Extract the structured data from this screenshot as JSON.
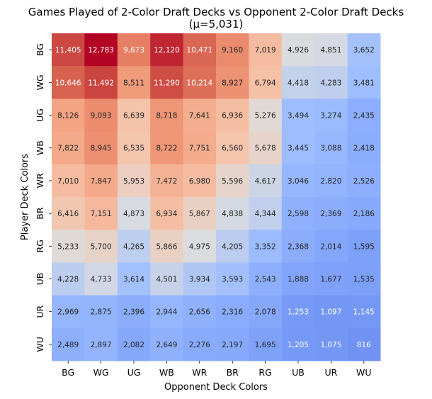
{
  "chart_data": {
    "type": "heatmap",
    "title": "Games Played of 2-Color Draft Decks vs Opponent 2-Color Draft Decks",
    "subtitle": "(μ=5,031)",
    "xlabel": "Opponent Deck Colors",
    "ylabel": "Player Deck Colors",
    "x_categories": [
      "BG",
      "WG",
      "UG",
      "WB",
      "WR",
      "BR",
      "RG",
      "UB",
      "UR",
      "WU"
    ],
    "y_categories": [
      "BG",
      "WG",
      "UG",
      "WB",
      "WR",
      "BR",
      "RG",
      "UB",
      "UR",
      "WU"
    ],
    "colormap": "coolwarm",
    "center": 5031,
    "values": [
      [
        11405,
        12783,
        9673,
        12120,
        10471,
        9160,
        7019,
        4926,
        4851,
        3652
      ],
      [
        10646,
        11492,
        8511,
        11290,
        10214,
        8927,
        6794,
        4418,
        4283,
        3481
      ],
      [
        8126,
        9093,
        6639,
        8718,
        7641,
        6936,
        5276,
        3494,
        3274,
        2435
      ],
      [
        7822,
        8945,
        6535,
        8722,
        7751,
        6560,
        5678,
        3445,
        3088,
        2418
      ],
      [
        7010,
        7847,
        5953,
        7472,
        6980,
        5596,
        4617,
        3046,
        2820,
        2526
      ],
      [
        6416,
        7151,
        4873,
        6934,
        5867,
        4838,
        4344,
        2598,
        2369,
        2186
      ],
      [
        5233,
        5700,
        4265,
        5866,
        4975,
        4205,
        3352,
        2368,
        2014,
        1595
      ],
      [
        4228,
        4733,
        3614,
        4501,
        3934,
        3593,
        2543,
        1888,
        1677,
        1535
      ],
      [
        2969,
        2875,
        2396,
        2944,
        2656,
        2316,
        2078,
        1253,
        1097,
        1145
      ],
      [
        2489,
        2897,
        2082,
        2649,
        2276,
        2197,
        1695,
        1205,
        1075,
        816
      ]
    ],
    "cell_labels": [
      [
        "11,405",
        "12,783",
        "9,673",
        "12,120",
        "10,471",
        "9,160",
        "7,019",
        "4,926",
        "4,851",
        "3,652"
      ],
      [
        "10,646",
        "11,492",
        "8,511",
        "11,290",
        "10,214",
        "8,927",
        "6,794",
        "4,418",
        "4,283",
        "3,481"
      ],
      [
        "8,126",
        "9,093",
        "6,639",
        "8,718",
        "7,641",
        "6,936",
        "5,276",
        "3,494",
        "3,274",
        "2,435"
      ],
      [
        "7,822",
        "8,945",
        "6,535",
        "8,722",
        "7,751",
        "6,560",
        "5,678",
        "3,445",
        "3,088",
        "2,418"
      ],
      [
        "7,010",
        "7,847",
        "5,953",
        "7,472",
        "6,980",
        "5,596",
        "4,617",
        "3,046",
        "2,820",
        "2,526"
      ],
      [
        "6,416",
        "7,151",
        "4,873",
        "6,934",
        "5,867",
        "4,838",
        "4,344",
        "2,598",
        "2,369",
        "2,186"
      ],
      [
        "5,233",
        "5,700",
        "4,265",
        "5,866",
        "4,975",
        "4,205",
        "3,352",
        "2,368",
        "2,014",
        "1,595"
      ],
      [
        "4,228",
        "4,733",
        "3,614",
        "4,501",
        "3,934",
        "3,593",
        "2,543",
        "1,888",
        "1,677",
        "1,535"
      ],
      [
        "2,969",
        "2,875",
        "2,396",
        "2,944",
        "2,656",
        "2,316",
        "2,078",
        "1,253",
        "1,097",
        "1,145"
      ],
      [
        "2,489",
        "2,897",
        "2,082",
        "2,649",
        "2,276",
        "2,197",
        "1,695",
        "1,205",
        "1,075",
        "816"
      ]
    ],
    "grid": false,
    "colorbar": false
  }
}
